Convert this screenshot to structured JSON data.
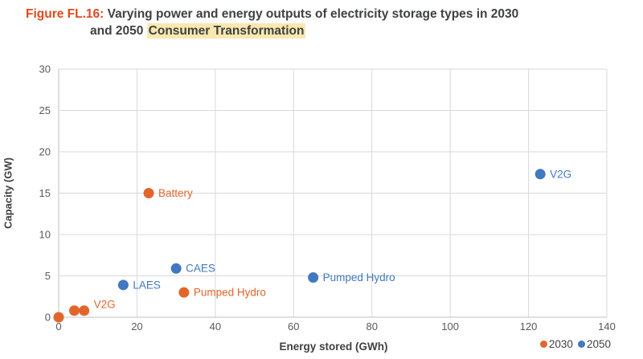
{
  "figure": {
    "label": "Figure FL.16:",
    "title_line1": "Varying power and energy outputs of electricity storage types in 2030",
    "title_line2_prefix": "and 2050 ",
    "title_highlight": "Consumer Transformation"
  },
  "colors": {
    "figure_label": "#E2481D",
    "title_text": "#3F4040",
    "highlight_bg": "#F9E8B0",
    "grid_line": "#D9D9D9",
    "axis_line": "#BFBFBF",
    "tick_text": "#595959",
    "series_2030": "#E2662C",
    "series_2050": "#4178BE"
  },
  "chart_data": {
    "type": "scatter",
    "title": "Varying power and energy outputs of electricity storage types in 2030 and 2050 Consumer Transformation",
    "xlabel": "Energy stored (GWh)",
    "ylabel": "Capacity (GW)",
    "xlim": [
      0,
      140
    ],
    "ylim": [
      0,
      30
    ],
    "x_ticks": [
      0,
      20,
      40,
      60,
      80,
      100,
      120,
      140
    ],
    "y_ticks": [
      0,
      5,
      10,
      15,
      20,
      25,
      30
    ],
    "grid": true,
    "legend_position": "bottom-right",
    "series": [
      {
        "name": "2030",
        "color": "#E2662C",
        "points": [
          {
            "x": 0,
            "y": 0,
            "label": ""
          },
          {
            "x": 4,
            "y": 0.8,
            "label": ""
          },
          {
            "x": 6.5,
            "y": 0.8,
            "label": "V2G",
            "label_dy": -8
          },
          {
            "x": 23,
            "y": 15,
            "label": "Battery"
          },
          {
            "x": 32,
            "y": 3,
            "label": "Pumped Hydro"
          }
        ]
      },
      {
        "name": "2050",
        "color": "#4178BE",
        "points": [
          {
            "x": 16.5,
            "y": 3.9,
            "label": "LAES"
          },
          {
            "x": 30,
            "y": 5.9,
            "label": "CAES"
          },
          {
            "x": 65,
            "y": 4.8,
            "label": "Pumped Hydro"
          },
          {
            "x": 123,
            "y": 17.3,
            "label": "V2G"
          }
        ]
      }
    ]
  }
}
